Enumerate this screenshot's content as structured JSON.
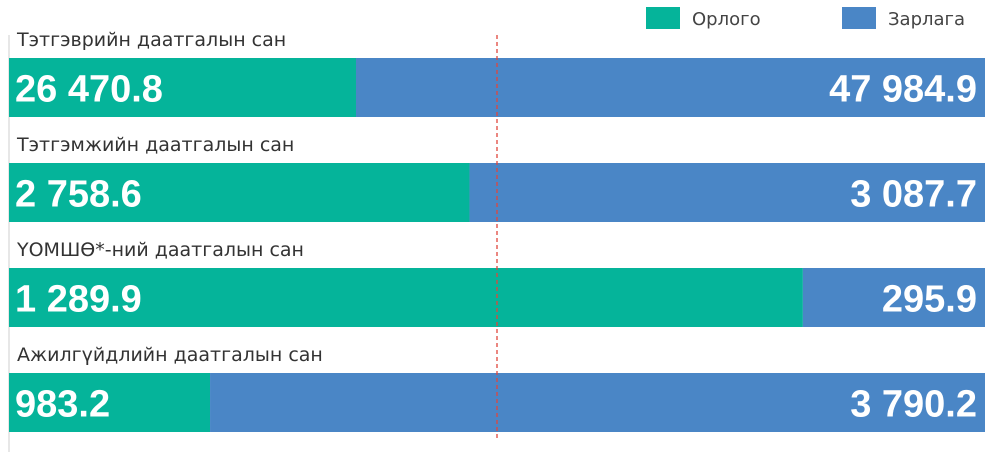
{
  "chart_data": {
    "type": "bar",
    "stacked": "percent",
    "orientation": "horizontal",
    "legend_position": "top-right",
    "categories": [
      "Тэтгэврийн даатгалын сан",
      "Тэтгэмжийн даатгалын сан",
      "ҮОМШӨ*-ний даатгалын сан",
      "Ажилгүйдлийн даатгалын сан"
    ],
    "series": [
      {
        "name": "Орлого",
        "color": "#05B49A",
        "values": [
          26470.8,
          2758.6,
          1289.9,
          983.2
        ],
        "labels": [
          "26 470.8",
          "2 758.6",
          "1 289.9",
          "983.2"
        ]
      },
      {
        "name": "Зарлага",
        "color": "#4A86C6",
        "values": [
          47984.9,
          3087.7,
          295.9,
          3790.2
        ],
        "labels": [
          "47 984.9",
          "3 087.7",
          "295.9",
          "3 790.2"
        ]
      }
    ],
    "reference_line": {
      "value": 50,
      "unit": "percent",
      "color": "#E0463C",
      "style": "dashed"
    }
  }
}
